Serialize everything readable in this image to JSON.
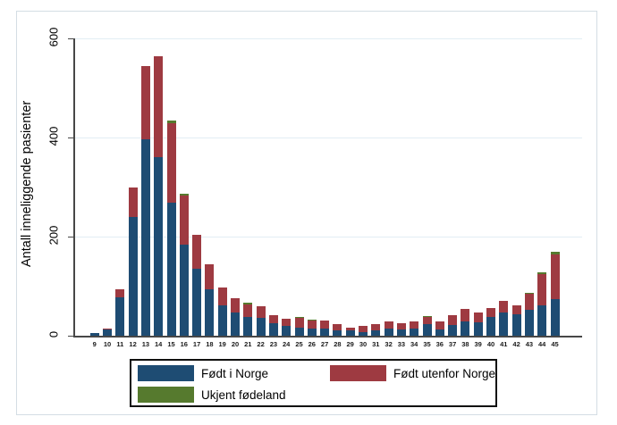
{
  "chart_data": {
    "type": "bar",
    "stacked": true,
    "title": "",
    "xlabel": "",
    "ylabel": "Antall inneliggende pasienter",
    "ylim": [
      0,
      600
    ],
    "yticks": [
      0,
      200,
      400,
      600
    ],
    "grid": true,
    "legend_position": "bottom",
    "categories": [
      9,
      10,
      11,
      12,
      13,
      14,
      15,
      16,
      17,
      18,
      19,
      20,
      21,
      22,
      23,
      24,
      25,
      26,
      27,
      28,
      29,
      30,
      31,
      32,
      33,
      34,
      35,
      36,
      37,
      38,
      39,
      40,
      41,
      42,
      43,
      44,
      45
    ],
    "series": [
      {
        "name": "Født i Norge",
        "color": "#1e4c73",
        "values": [
          5,
          12,
          77,
          240,
          397,
          360,
          268,
          184,
          136,
          94,
          62,
          46,
          38,
          36,
          26,
          20,
          17,
          15,
          14,
          11,
          10,
          8,
          10,
          14,
          12,
          15,
          23,
          13,
          21,
          28,
          27,
          37,
          46,
          43,
          52,
          61,
          74
        ]
      },
      {
        "name": "Født utenfor Norge",
        "color": "#9e3a41",
        "values": [
          0,
          2,
          17,
          60,
          148,
          205,
          161,
          99,
          68,
          51,
          36,
          30,
          25,
          23,
          15,
          15,
          19,
          15,
          16,
          12,
          7,
          12,
          14,
          14,
          14,
          13,
          14,
          16,
          21,
          26,
          20,
          19,
          24,
          19,
          32,
          63,
          91
        ]
      },
      {
        "name": "Ukjent fødeland",
        "color": "#567a2e",
        "values": [
          0,
          0,
          0,
          0,
          0,
          0,
          5,
          4,
          0,
          0,
          0,
          0,
          3,
          0,
          0,
          0,
          2,
          2,
          0,
          0,
          0,
          0,
          0,
          0,
          0,
          0,
          2,
          0,
          0,
          0,
          0,
          0,
          0,
          0,
          3,
          4,
          5
        ]
      }
    ]
  }
}
